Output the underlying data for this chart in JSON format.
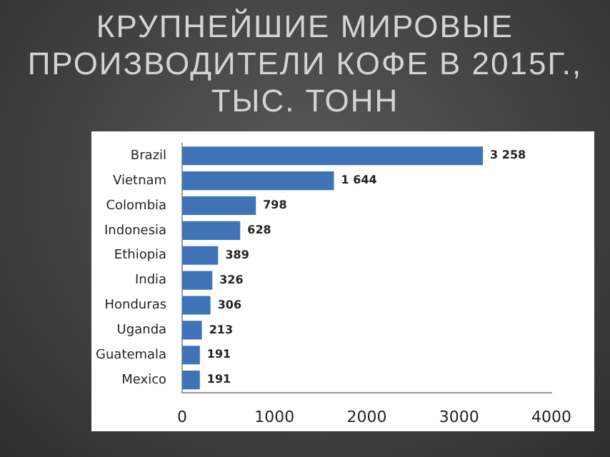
{
  "chart_data": {
    "type": "bar",
    "orientation": "horizontal",
    "title": "КРУПНЕЙШИЕ МИРОВЫЕ ПРОИЗВОДИТЕЛИ КОФЕ В 2015Г., ТЫС. ТОНН",
    "categories": [
      "Brazil",
      "Vietnam",
      "Colombia",
      "Indonesia",
      "Ethiopia",
      "India",
      "Honduras",
      "Uganda",
      "Guatemala",
      "Mexico"
    ],
    "values": [
      3258,
      1644,
      798,
      628,
      389,
      326,
      306,
      213,
      191,
      191
    ],
    "value_labels": [
      "3 258",
      "1 644",
      "798",
      "628",
      "389",
      "326",
      "306",
      "213",
      "191",
      "191"
    ],
    "color": "#3f73b8",
    "xlim": [
      0,
      4000
    ],
    "xticks": [
      0,
      1000,
      2000,
      3000,
      4000
    ],
    "grid": false,
    "legend": false
  }
}
